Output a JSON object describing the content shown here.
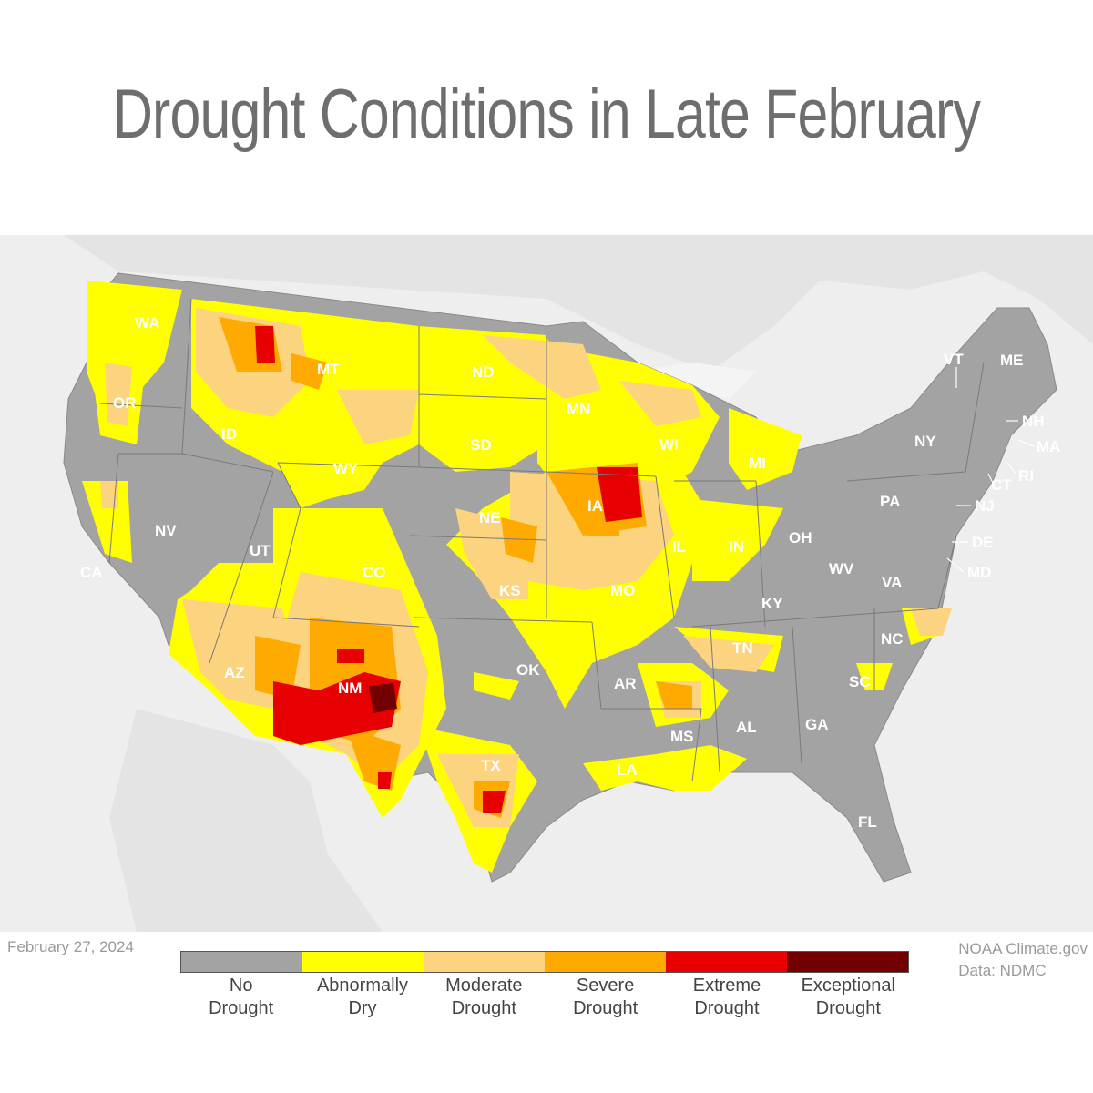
{
  "title": "Drought Conditions in Late February",
  "date": "February 27, 2024",
  "credit": {
    "line1": "NOAA Climate.gov",
    "line2": "Data: NDMC"
  },
  "legend": [
    {
      "line1": "No",
      "line2": "Drought",
      "color": "#a3a3a3"
    },
    {
      "line1": "Abnormally",
      "line2": "Dry",
      "color": "#ffff00"
    },
    {
      "line1": "Moderate",
      "line2": "Drought",
      "color": "#fcd37f"
    },
    {
      "line1": "Severe",
      "line2": "Drought",
      "color": "#ffaa00"
    },
    {
      "line1": "Extreme",
      "line2": "Drought",
      "color": "#e60000"
    },
    {
      "line1": "Exceptional",
      "line2": "Drought",
      "color": "#730000"
    }
  ],
  "states": {
    "WA": "WA",
    "OR": "OR",
    "CA": "CA",
    "NV": "NV",
    "ID": "ID",
    "MT": "MT",
    "WY": "WY",
    "UT": "UT",
    "AZ": "AZ",
    "CO": "CO",
    "NM": "NM",
    "ND": "ND",
    "SD": "SD",
    "NE": "NE",
    "KS": "KS",
    "OK": "OK",
    "TX": "TX",
    "MN": "MN",
    "IA": "IA",
    "MO": "MO",
    "AR": "AR",
    "LA": "LA",
    "WI": "WI",
    "IL": "IL",
    "MI": "MI",
    "IN": "IN",
    "OH": "OH",
    "KY": "KY",
    "TN": "TN",
    "MS": "MS",
    "AL": "AL",
    "GA": "GA",
    "FL": "FL",
    "SC": "SC",
    "NC": "NC",
    "VA": "VA",
    "WV": "WV",
    "PA": "PA",
    "NY": "NY",
    "VT": "VT",
    "ME": "ME",
    "NH": "NH",
    "MA": "MA",
    "RI": "RI",
    "CT": "CT",
    "NJ": "NJ",
    "DE": "DE",
    "MD": "MD"
  },
  "colors": {
    "no_drought": "#a3a3a3",
    "abnormally_dry": "#ffff00",
    "moderate": "#fcd37f",
    "severe": "#ffaa00",
    "extreme": "#e60000",
    "exceptional": "#730000",
    "background_land": "#e6e6e6",
    "water": "#f4f4f4"
  }
}
